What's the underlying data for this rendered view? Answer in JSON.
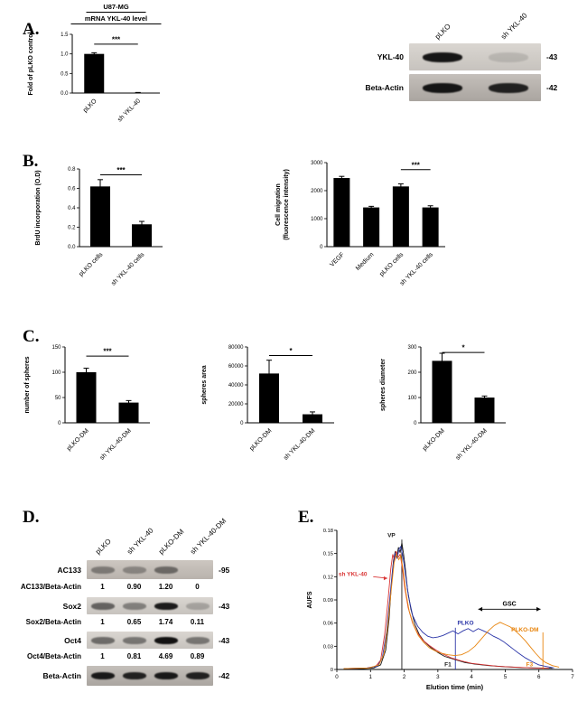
{
  "figure": {
    "panel_labels": {
      "A": "A.",
      "B": "B.",
      "C": "C.",
      "D": "D.",
      "E": "E."
    }
  },
  "colors": {
    "bar": "#000000",
    "vp": "#1a1a1a",
    "sh_ykl40": "#d93636",
    "plko": "#2b35a8",
    "plko_dm": "#e8850f"
  },
  "chart_data": [
    {
      "id": "mrna-ykl40",
      "type": "bar",
      "title": "U87-MG",
      "subtitle": "mRNA YKL-40 level",
      "ylabel": [
        "Fold of pLKO control"
      ],
      "categories": [
        "pLKO",
        "sh YKL-40"
      ],
      "values": [
        1.0,
        0.01
      ],
      "errors": [
        0.03,
        0.005
      ],
      "ylim": [
        0,
        1.5
      ],
      "yticks": [
        "0.0",
        "0.5",
        "1.0",
        "1.5"
      ],
      "sig": {
        "from": 0,
        "to": 1,
        "label": "***",
        "level": 1.25
      }
    },
    {
      "id": "brdu",
      "type": "bar",
      "ylabel": [
        "BrdU incorporation (O.D)"
      ],
      "categories": [
        "pLKO cells",
        "sh YKL-40 cells"
      ],
      "values": [
        0.62,
        0.23
      ],
      "errors": [
        0.07,
        0.03
      ],
      "ylim": [
        0,
        0.8
      ],
      "yticks": [
        "0.0",
        "0.2",
        "0.4",
        "0.6",
        "0.8"
      ],
      "sig": {
        "from": 0,
        "to": 1,
        "label": "***",
        "level": 0.74
      }
    },
    {
      "id": "migration",
      "type": "bar",
      "ylabel": [
        "Cell migration",
        "(fluorescence intensity)"
      ],
      "categories": [
        "VEGF",
        "Medium",
        "pLKO cells",
        "sh YKL-40 cells"
      ],
      "values": [
        2450,
        1400,
        2150,
        1400
      ],
      "errors": [
        60,
        40,
        90,
        60
      ],
      "ylim": [
        0,
        3000
      ],
      "yticks": [
        "0",
        "1000",
        "2000",
        "3000"
      ],
      "sig": {
        "from": 2,
        "to": 3,
        "label": "***",
        "level": 2750
      }
    },
    {
      "id": "sphere-number",
      "type": "bar",
      "ylabel": [
        "number of spheres"
      ],
      "categories": [
        "pLKO-DM",
        "sh YKL-40-DM"
      ],
      "values": [
        100,
        40
      ],
      "errors": [
        8,
        4
      ],
      "ylim": [
        0,
        150
      ],
      "yticks": [
        "0",
        "50",
        "100",
        "150"
      ],
      "sig": {
        "from": 0,
        "to": 1,
        "label": "***",
        "level": 132
      }
    },
    {
      "id": "sphere-area",
      "type": "bar",
      "ylabel": [
        "spheres area"
      ],
      "categories": [
        "pLKO-DM",
        "sh YKL-40-DM"
      ],
      "values": [
        52000,
        9000
      ],
      "errors": [
        14000,
        2500
      ],
      "ylim": [
        0,
        80000
      ],
      "yticks": [
        "0",
        "20000",
        "40000",
        "60000",
        "80000"
      ],
      "sig": {
        "from": 0,
        "to": 1,
        "label": "*",
        "level": 71000
      }
    },
    {
      "id": "sphere-diameter",
      "type": "bar",
      "ylabel": [
        "spheres diameter"
      ],
      "categories": [
        "pLKO-DM",
        "sh YKL-40-DM"
      ],
      "values": [
        245,
        100
      ],
      "errors": [
        30,
        6
      ],
      "ylim": [
        0,
        300
      ],
      "yticks": [
        "0",
        "100",
        "200",
        "300"
      ],
      "sig": {
        "from": 0,
        "to": 1,
        "label": "*",
        "level": 278
      }
    },
    {
      "id": "elution",
      "type": "line",
      "xlabel": "Elution time (min)",
      "ylabel": "AUFS",
      "xlim": [
        0,
        7
      ],
      "ylim": [
        0,
        0.18
      ],
      "xticks": [
        "0",
        "1",
        "2",
        "3",
        "4",
        "5",
        "6",
        "7"
      ],
      "yticks": [
        "0",
        "0.03",
        "0.06",
        "0.09",
        "0.12",
        "0.15",
        "0.18"
      ],
      "series": [
        {
          "name": "VP",
          "color": "#1a1a1a",
          "points": [
            [
              0.2,
              0.001
            ],
            [
              0.8,
              0.001
            ],
            [
              1.1,
              0.002
            ],
            [
              1.3,
              0.006
            ],
            [
              1.45,
              0.025
            ],
            [
              1.55,
              0.065
            ],
            [
              1.62,
              0.11
            ],
            [
              1.68,
              0.14
            ],
            [
              1.73,
              0.152
            ],
            [
              1.78,
              0.146
            ],
            [
              1.83,
              0.158
            ],
            [
              1.88,
              0.151
            ],
            [
              1.93,
              0.164
            ],
            [
              1.98,
              0.15
            ],
            [
              2.03,
              0.132
            ],
            [
              2.1,
              0.103
            ],
            [
              2.2,
              0.078
            ],
            [
              2.32,
              0.058
            ],
            [
              2.45,
              0.045
            ],
            [
              2.6,
              0.036
            ],
            [
              2.8,
              0.028
            ],
            [
              3.0,
              0.022
            ],
            [
              3.2,
              0.017
            ],
            [
              3.5,
              0.013
            ],
            [
              3.8,
              0.009
            ],
            [
              4.1,
              0.007
            ],
            [
              4.5,
              0.005
            ],
            [
              5.0,
              0.0035
            ],
            [
              5.5,
              0.0025
            ],
            [
              6.0,
              0.002
            ],
            [
              6.4,
              0.0015
            ]
          ]
        },
        {
          "name": "sh YKL-40",
          "color": "#d93636",
          "points": [
            [
              0.2,
              0.001
            ],
            [
              0.9,
              0.002
            ],
            [
              1.15,
              0.004
            ],
            [
              1.3,
              0.012
            ],
            [
              1.42,
              0.045
            ],
            [
              1.52,
              0.09
            ],
            [
              1.6,
              0.13
            ],
            [
              1.66,
              0.149
            ],
            [
              1.71,
              0.141
            ],
            [
              1.76,
              0.153
            ],
            [
              1.82,
              0.145
            ],
            [
              1.88,
              0.149
            ],
            [
              1.95,
              0.13
            ],
            [
              2.02,
              0.105
            ],
            [
              2.12,
              0.08
            ],
            [
              2.25,
              0.06
            ],
            [
              2.4,
              0.047
            ],
            [
              2.55,
              0.038
            ],
            [
              2.75,
              0.031
            ],
            [
              2.95,
              0.025
            ],
            [
              3.15,
              0.02
            ],
            [
              3.4,
              0.015
            ],
            [
              3.7,
              0.011
            ],
            [
              4.0,
              0.008
            ],
            [
              4.4,
              0.006
            ],
            [
              4.8,
              0.004
            ],
            [
              5.3,
              0.003
            ],
            [
              5.8,
              0.002
            ],
            [
              6.3,
              0.0015
            ]
          ]
        },
        {
          "name": "PLKO",
          "color": "#2b35a8",
          "points": [
            [
              0.2,
              0.001
            ],
            [
              0.9,
              0.002
            ],
            [
              1.2,
              0.004
            ],
            [
              1.35,
              0.015
            ],
            [
              1.48,
              0.05
            ],
            [
              1.58,
              0.095
            ],
            [
              1.66,
              0.132
            ],
            [
              1.73,
              0.15
            ],
            [
              1.79,
              0.144
            ],
            [
              1.85,
              0.156
            ],
            [
              1.9,
              0.159
            ],
            [
              1.96,
              0.147
            ],
            [
              2.04,
              0.122
            ],
            [
              2.13,
              0.094
            ],
            [
              2.25,
              0.07
            ],
            [
              2.4,
              0.056
            ],
            [
              2.55,
              0.048
            ],
            [
              2.7,
              0.043
            ],
            [
              2.85,
              0.041
            ],
            [
              3.0,
              0.042
            ],
            [
              3.15,
              0.044
            ],
            [
              3.3,
              0.047
            ],
            [
              3.45,
              0.05
            ],
            [
              3.6,
              0.046
            ],
            [
              3.75,
              0.05
            ],
            [
              3.9,
              0.053
            ],
            [
              4.05,
              0.049
            ],
            [
              4.2,
              0.053
            ],
            [
              4.35,
              0.05
            ],
            [
              4.5,
              0.047
            ],
            [
              4.65,
              0.043
            ],
            [
              4.8,
              0.04
            ],
            [
              4.95,
              0.036
            ],
            [
              5.1,
              0.031
            ],
            [
              5.25,
              0.026
            ],
            [
              5.4,
              0.021
            ],
            [
              5.6,
              0.015
            ],
            [
              5.8,
              0.01
            ],
            [
              6.0,
              0.006
            ],
            [
              6.2,
              0.004
            ],
            [
              6.45,
              0.002
            ]
          ]
        },
        {
          "name": "PLKO-DM",
          "color": "#e8850f",
          "points": [
            [
              0.2,
              0.001
            ],
            [
              0.95,
              0.002
            ],
            [
              1.25,
              0.006
            ],
            [
              1.4,
              0.02
            ],
            [
              1.52,
              0.06
            ],
            [
              1.62,
              0.105
            ],
            [
              1.7,
              0.138
            ],
            [
              1.77,
              0.149
            ],
            [
              1.84,
              0.142
            ],
            [
              1.9,
              0.147
            ],
            [
              1.97,
              0.128
            ],
            [
              2.05,
              0.1
            ],
            [
              2.15,
              0.075
            ],
            [
              2.28,
              0.057
            ],
            [
              2.42,
              0.044
            ],
            [
              2.58,
              0.035
            ],
            [
              2.75,
              0.028
            ],
            [
              2.92,
              0.024
            ],
            [
              3.1,
              0.021
            ],
            [
              3.3,
              0.019
            ],
            [
              3.5,
              0.018
            ],
            [
              3.7,
              0.019
            ],
            [
              3.9,
              0.023
            ],
            [
              4.1,
              0.03
            ],
            [
              4.3,
              0.04
            ],
            [
              4.5,
              0.05
            ],
            [
              4.68,
              0.057
            ],
            [
              4.85,
              0.061
            ],
            [
              5.0,
              0.058
            ],
            [
              5.15,
              0.055
            ],
            [
              5.3,
              0.05
            ],
            [
              5.45,
              0.044
            ],
            [
              5.6,
              0.037
            ],
            [
              5.75,
              0.029
            ],
            [
              5.9,
              0.021
            ],
            [
              6.05,
              0.014
            ],
            [
              6.2,
              0.009
            ],
            [
              6.4,
              0.005
            ],
            [
              6.6,
              0.003
            ]
          ]
        }
      ],
      "vlines": [
        {
          "x": 1.93,
          "y1": 0,
          "y2": 0.168,
          "color": "#1a1a1a"
        },
        {
          "x": 3.52,
          "y1": 0,
          "y2": 0.054,
          "color": "#2b35a8"
        },
        {
          "x": 6.12,
          "y1": 0,
          "y2": 0.048,
          "color": "#e8850f"
        }
      ],
      "annotations": [
        {
          "text": "VP",
          "x": 1.62,
          "y": 0.171,
          "color": "#1a1a1a",
          "anchor": "middle"
        },
        {
          "text": "sh YKL-40",
          "x": 0.05,
          "y": 0.121,
          "color": "#d93636",
          "anchor": "start",
          "arrow": {
            "x1": 1.08,
            "y1": 0.12,
            "x2": 1.5,
            "y2": 0.118
          }
        },
        {
          "text": "PLKO",
          "x": 3.58,
          "y": 0.058,
          "color": "#2b35a8",
          "anchor": "start"
        },
        {
          "text": "PLKO-DM",
          "x": 5.18,
          "y": 0.049,
          "color": "#e8850f",
          "anchor": "start"
        },
        {
          "text": "F1",
          "x": 3.4,
          "y": 0.004,
          "color": "#1a1a1a",
          "anchor": "end"
        },
        {
          "text": "F3",
          "x": 5.72,
          "y": 0.004,
          "color": "#e8850f",
          "anchor": "middle"
        }
      ],
      "range_arrow": {
        "label": "GSC",
        "x1": 4.2,
        "x2": 6.05,
        "y": 0.078
      }
    }
  ],
  "blots": [
    {
      "id": "ykl40-blot",
      "lanes": [
        "pLKO",
        "sh YKL-40"
      ],
      "rows": [
        {
          "type": "blot",
          "label": "YKL-40",
          "marker": "-43",
          "bands": [
            0.95,
            0.12
          ],
          "shade": "light"
        },
        {
          "type": "blot",
          "label": "Beta-Actin",
          "marker": "-42",
          "bands": [
            0.95,
            0.88
          ],
          "shade": "dark"
        }
      ]
    },
    {
      "id": "stemness-blot",
      "lanes": [
        "pLKO",
        "sh YKL-40",
        "pLKO-DM",
        "sh YKL-40-DM"
      ],
      "rows": [
        {
          "type": "blot",
          "label": "AC133",
          "marker": "-95",
          "bands": [
            0.38,
            0.32,
            0.48,
            0
          ],
          "shade": "medium"
        },
        {
          "type": "ratio",
          "label": "AC133/Beta-Actin",
          "values": [
            "1",
            "0.90",
            "1.20",
            "0"
          ]
        },
        {
          "type": "blot",
          "label": "Sox2",
          "marker": "-43",
          "bands": [
            0.55,
            0.4,
            0.92,
            0.22
          ],
          "shade": "light"
        },
        {
          "type": "ratio",
          "label": "Sox2/Beta-Actin",
          "values": [
            "1",
            "0.65",
            "1.74",
            "0.11"
          ]
        },
        {
          "type": "blot",
          "label": "Oct4",
          "marker": "-43",
          "bands": [
            0.5,
            0.45,
            0.97,
            0.45
          ],
          "shade": "light"
        },
        {
          "type": "ratio",
          "label": "Oct4/Beta-Actin",
          "values": [
            "1",
            "0.81",
            "4.69",
            "0.89"
          ]
        },
        {
          "type": "blot",
          "label": "Beta-Actin",
          "marker": "-42",
          "bands": [
            0.93,
            0.88,
            0.93,
            0.88
          ],
          "shade": "dark"
        }
      ]
    }
  ]
}
